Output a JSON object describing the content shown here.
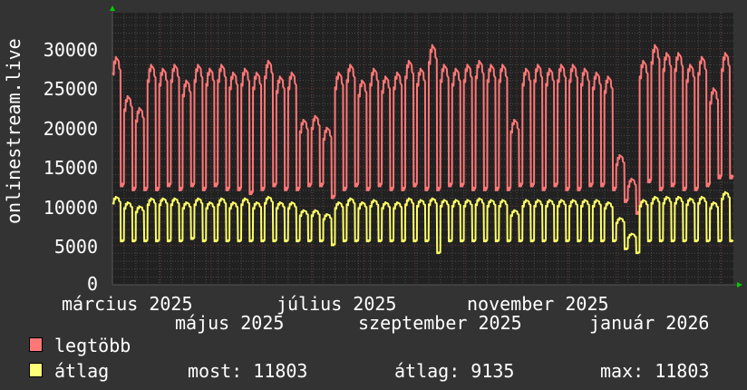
{
  "chart_data": {
    "type": "line",
    "ylabel": "onlinestream.live",
    "ylim": [
      0,
      34600
    ],
    "y_ticks": [
      "0",
      "5000",
      "10000",
      "15000",
      "20000",
      "25000",
      "30000"
    ],
    "x_tick_labels": [
      "március 2025",
      "május 2025",
      "július 2025",
      "szeptember 2025",
      "november 2025",
      "január 2026"
    ],
    "grid": true,
    "resolution": "weekly pattern: weekday plateau / weekend low",
    "series": [
      {
        "name": "legtöbb",
        "color": "#ff7777",
        "weekday_peak": [
          29000,
          24000,
          22500,
          28000,
          27500,
          28000,
          26000,
          28000,
          27500,
          28000,
          27000,
          27500,
          27000,
          28500,
          26500,
          27000,
          21000,
          21500,
          20000,
          27000,
          28000,
          26000,
          27500,
          26500,
          27000,
          28500,
          27500,
          30500,
          28000,
          27500,
          28000,
          28500,
          28000,
          28000,
          21000,
          27500,
          28000,
          27500,
          28000,
          28000,
          27500,
          27000,
          26500,
          16500,
          13500,
          28500,
          30500,
          29500,
          29500,
          28000,
          29000,
          25000,
          29500
        ],
        "weekend_low": [
          12500,
          12000,
          12000,
          12000,
          12500,
          12000,
          12500,
          12000,
          12500,
          12000,
          12000,
          11500,
          12000,
          12500,
          12000,
          12000,
          12500,
          12500,
          11000,
          12000,
          12500,
          12000,
          12500,
          12000,
          12000,
          12500,
          12000,
          12000,
          12500,
          12500,
          12000,
          12000,
          12000,
          12000,
          12500,
          12500,
          12000,
          12500,
          12000,
          12000,
          12500,
          12500,
          12000,
          10500,
          9000,
          13000,
          12000,
          12500,
          12000,
          12000,
          12500,
          13500,
          13500
        ]
      },
      {
        "name": "átlag",
        "color": "#ffff66",
        "weekday_peak": [
          11200,
          10500,
          10000,
          11000,
          11000,
          11000,
          10500,
          11000,
          10500,
          11000,
          10500,
          11000,
          10500,
          11200,
          10500,
          10500,
          9500,
          9500,
          9000,
          10500,
          11000,
          10500,
          10800,
          10500,
          10500,
          11000,
          10800,
          11000,
          10800,
          10800,
          10800,
          11000,
          10800,
          10800,
          9500,
          10800,
          10800,
          10800,
          10800,
          10800,
          10800,
          10800,
          10500,
          8500,
          6500,
          10800,
          11200,
          11200,
          11200,
          11000,
          11200,
          10500,
          11800
        ],
        "weekend_low": [
          5500,
          5500,
          5500,
          5500,
          5500,
          5500,
          5800,
          5500,
          5500,
          5500,
          5500,
          5500,
          5500,
          5500,
          5500,
          5500,
          5500,
          5500,
          5000,
          5500,
          5500,
          5500,
          5500,
          5500,
          5500,
          5500,
          5500,
          4000,
          5500,
          5500,
          5500,
          5500,
          5500,
          5500,
          5500,
          5500,
          5500,
          5500,
          5500,
          5500,
          5500,
          5500,
          5500,
          4500,
          4000,
          5500,
          5500,
          5500,
          5500,
          5500,
          5500,
          5500,
          5500
        ]
      }
    ]
  },
  "legend": {
    "max_label": "legtöbb",
    "avg_label": "átlag",
    "now": "most: 11803",
    "average": "átlag: 9135",
    "maximum": "max: 11803"
  }
}
